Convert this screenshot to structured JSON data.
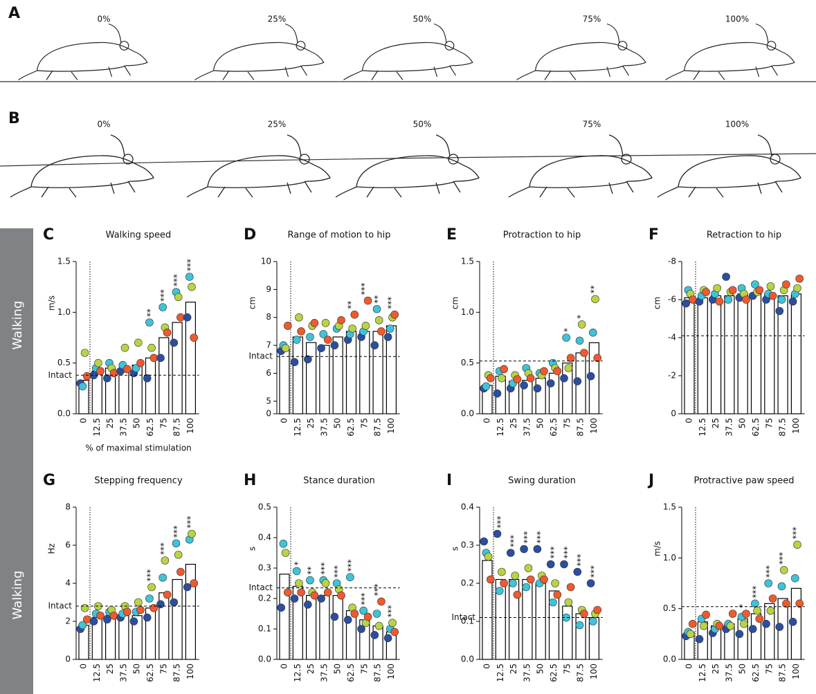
{
  "figure": {
    "rows": [
      {
        "label": "A",
        "stages": [
          "0%",
          "25%",
          "50%",
          "75%",
          "100%"
        ]
      },
      {
        "label": "B",
        "stages": [
          "0%",
          "25%",
          "50%",
          "75%",
          "100%"
        ]
      }
    ],
    "side_labels": [
      "Walking",
      "Walking"
    ]
  },
  "chart_data": [
    {
      "type": "bar",
      "letter": "C",
      "title": "Walking speed",
      "ylabel": "m/s",
      "xlabel": "% of maximal stimulation",
      "categories": [
        "0",
        "12.5",
        "25",
        "37.5",
        "50",
        "62.5",
        "75",
        "87.5",
        "100"
      ],
      "values": [
        0.33,
        0.42,
        0.45,
        0.45,
        0.48,
        0.55,
        0.75,
        0.9,
        1.1
      ],
      "stars": [
        null,
        null,
        null,
        null,
        null,
        "**",
        "***",
        "***",
        "***"
      ],
      "points": [
        [
          0.3,
          0.27,
          0.6,
          0.37
        ],
        [
          0.38,
          0.45,
          0.5,
          0.42
        ],
        [
          0.35,
          0.5,
          0.45,
          0.4
        ],
        [
          0.42,
          0.48,
          0.65,
          0.44
        ],
        [
          0.4,
          0.45,
          0.7,
          0.5
        ],
        [
          0.35,
          0.9,
          0.65,
          0.55
        ],
        [
          0.55,
          1.05,
          0.85,
          0.8
        ],
        [
          0.7,
          1.2,
          1.15,
          0.95
        ],
        [
          0.95,
          1.35,
          1.25,
          0.75
        ]
      ],
      "point_colors": [
        "#2b4ea0",
        "#3ec3da",
        "#b8d444",
        "#ef5a2e"
      ],
      "ref_line": 0.38,
      "ref_label": "Intact",
      "ylim": [
        0,
        1.5
      ],
      "yticks": [
        {
          "value": 0,
          "label": "0.0"
        },
        0.5,
        {
          "value": 1,
          "label": "1.0"
        },
        1.5
      ]
    },
    {
      "type": "bar",
      "letter": "D",
      "title": "Range of motion to hip",
      "ylabel": "cm",
      "categories": [
        "0",
        "12.5",
        "25",
        "37.5",
        "50",
        "62.5",
        "75",
        "87.5",
        "100"
      ],
      "values": [
        6.9,
        7.3,
        7.1,
        7.0,
        7.3,
        7.5,
        7.5,
        7.5,
        7.7
      ],
      "stars": [
        null,
        null,
        null,
        null,
        null,
        "**",
        "***",
        "**",
        "***"
      ],
      "points": [
        [
          6.8,
          7.0,
          6.9,
          7.7
        ],
        [
          6.4,
          7.2,
          8.0,
          7.5
        ],
        [
          6.5,
          7.3,
          7.7,
          7.8
        ],
        [
          6.9,
          7.4,
          7.8,
          7.2
        ],
        [
          7.0,
          7.6,
          7.7,
          7.9
        ],
        [
          7.2,
          7.4,
          7.6,
          8.1
        ],
        [
          7.3,
          7.5,
          7.7,
          8.6
        ],
        [
          7.0,
          8.3,
          7.9,
          7.5
        ],
        [
          7.3,
          7.6,
          8.0,
          8.1
        ]
      ],
      "point_colors": [
        "#2b4ea0",
        "#3ec3da",
        "#b8d444",
        "#ef5a2e"
      ],
      "ref_line": 6.6,
      "ref_label": "Intact",
      "ylim": [
        4.55,
        10
      ],
      "yticks": [
        5,
        6,
        7,
        8,
        9,
        10
      ],
      "ybottom_tick": 0
    },
    {
      "type": "bar",
      "letter": "E",
      "title": "Protraction to hip",
      "ylabel": "cm",
      "categories": [
        "0",
        "12.5",
        "25",
        "37.5",
        "50",
        "62.5",
        "75",
        "87.5",
        "100"
      ],
      "values": [
        0.28,
        0.37,
        0.32,
        0.33,
        0.35,
        0.4,
        0.5,
        0.6,
        0.7
      ],
      "stars": [
        null,
        null,
        null,
        null,
        null,
        null,
        "*",
        "*",
        "**"
      ],
      "points": [
        [
          0.25,
          0.27,
          0.38,
          0.35
        ],
        [
          0.2,
          0.42,
          0.35,
          0.44
        ],
        [
          0.25,
          0.3,
          0.38,
          0.34
        ],
        [
          0.28,
          0.45,
          0.4,
          0.35
        ],
        [
          0.25,
          0.4,
          0.38,
          0.42
        ],
        [
          0.3,
          0.5,
          0.45,
          0.42
        ],
        [
          0.35,
          0.75,
          0.45,
          0.55
        ],
        [
          0.32,
          0.72,
          0.88,
          0.6
        ],
        [
          0.37,
          0.8,
          1.13,
          0.55
        ]
      ],
      "point_colors": [
        "#2b4ea0",
        "#3ec3da",
        "#b8d444",
        "#ef5a2e"
      ],
      "ref_line": 0.52,
      "ylim": [
        0,
        1.5
      ],
      "yticks": [
        {
          "value": 0,
          "label": "0.0"
        },
        0.5,
        {
          "value": 1,
          "label": "1.0"
        },
        1.5
      ]
    },
    {
      "type": "bar",
      "letter": "F",
      "title": "Retraction to hip",
      "ylabel": "cm",
      "categories": [
        "0",
        "12.5",
        "25",
        "37.5",
        "50",
        "62.5",
        "75",
        "87.5",
        "100"
      ],
      "values": [
        -6.1,
        -6.1,
        -6.2,
        -6.2,
        -6.3,
        -6.3,
        -6.3,
        -6.2,
        -6.3
      ],
      "points": [
        [
          -5.8,
          -6.5,
          -6.3,
          -6.0
        ],
        [
          -5.9,
          -6.2,
          -6.5,
          -6.4
        ],
        [
          -6.0,
          -6.3,
          -6.6,
          -5.9
        ],
        [
          -7.2,
          -6.0,
          -6.4,
          -6.5
        ],
        [
          -6.1,
          -6.6,
          -6.3,
          -6.0
        ],
        [
          -6.2,
          -6.8,
          -6.4,
          -6.5
        ],
        [
          -6.0,
          -6.3,
          -6.7,
          -6.2
        ],
        [
          -5.4,
          -6.0,
          -6.5,
          -6.8
        ],
        [
          -5.9,
          -6.3,
          -6.6,
          -7.1
        ]
      ],
      "point_colors": [
        "#2b4ea0",
        "#3ec3da",
        "#b8d444",
        "#ef5a2e"
      ],
      "ref_line": -4.1,
      "ylim": [
        0,
        -8
      ],
      "yticks": [
        0,
        -2,
        -4,
        -6,
        -8
      ]
    },
    {
      "type": "bar",
      "letter": "G",
      "title": "Stepping frequency",
      "ylabel": "Hz",
      "categories": [
        "0",
        "12.5",
        "25",
        "37.5",
        "50",
        "62.5",
        "75",
        "87.5",
        "100"
      ],
      "values": [
        1.8,
        2.2,
        2.3,
        2.3,
        2.3,
        2.7,
        3.5,
        4.2,
        5.0
      ],
      "stars": [
        null,
        null,
        null,
        null,
        null,
        "***",
        "***",
        "***",
        "***"
      ],
      "points": [
        [
          1.6,
          1.8,
          2.7,
          2.1
        ],
        [
          2.0,
          2.4,
          2.8,
          2.3
        ],
        [
          2.1,
          2.5,
          2.6,
          2.3
        ],
        [
          2.2,
          2.4,
          2.8,
          2.5
        ],
        [
          2.0,
          2.5,
          3.0,
          2.6
        ],
        [
          2.2,
          3.2,
          3.8,
          2.7
        ],
        [
          2.9,
          4.3,
          5.2,
          3.4
        ],
        [
          3.0,
          6.1,
          5.5,
          4.6
        ],
        [
          3.8,
          6.3,
          6.6,
          4.0
        ]
      ],
      "point_colors": [
        "#2b4ea0",
        "#3ec3da",
        "#b8d444",
        "#ef5a2e"
      ],
      "ref_line": 2.8,
      "ref_label": "Intact",
      "ylim": [
        0,
        8
      ],
      "yticks": [
        0,
        2,
        4,
        6,
        8
      ]
    },
    {
      "type": "bar",
      "letter": "H",
      "title": "Stance duration",
      "ylabel": "s",
      "categories": [
        "0",
        "12.5",
        "25",
        "37.5",
        "50",
        "62.5",
        "75",
        "87.5",
        "100"
      ],
      "values": [
        0.28,
        0.24,
        0.21,
        0.21,
        0.21,
        0.16,
        0.13,
        0.11,
        0.09
      ],
      "stars": [
        null,
        "*",
        "**",
        "***",
        "***",
        "***",
        "***",
        "***",
        "***"
      ],
      "points": [
        [
          0.17,
          0.38,
          0.35,
          0.22
        ],
        [
          0.2,
          0.29,
          0.25,
          0.22
        ],
        [
          0.18,
          0.26,
          0.22,
          0.21
        ],
        [
          0.2,
          0.26,
          0.25,
          0.22
        ],
        [
          0.14,
          0.25,
          0.23,
          0.21
        ],
        [
          0.13,
          0.27,
          0.17,
          0.15
        ],
        [
          0.1,
          0.16,
          0.12,
          0.14
        ],
        [
          0.08,
          0.15,
          0.11,
          0.19
        ],
        [
          0.07,
          0.1,
          0.12,
          0.09
        ]
      ],
      "point_colors": [
        "#2b4ea0",
        "#3ec3da",
        "#b8d444",
        "#ef5a2e"
      ],
      "ref_line": 0.235,
      "ref_label": "Intact",
      "ylim": [
        0,
        0.5
      ],
      "yticks": [
        {
          "value": 0,
          "label": "0.0"
        },
        0.1,
        0.2,
        0.3,
        0.4,
        0.5
      ]
    },
    {
      "type": "bar",
      "letter": "I",
      "title": "Swing duration",
      "ylabel": "s",
      "categories": [
        "0",
        "12.5",
        "25",
        "37.5",
        "50",
        "62.5",
        "75",
        "87.5",
        "100"
      ],
      "values": [
        0.26,
        0.21,
        0.21,
        0.21,
        0.2,
        0.18,
        0.14,
        0.12,
        0.11
      ],
      "stars": [
        null,
        "***",
        "***",
        "***",
        "***",
        "***",
        "***",
        "***",
        "***"
      ],
      "points": [
        [
          0.31,
          0.28,
          0.27,
          0.21
        ],
        [
          0.33,
          0.18,
          0.23,
          0.2
        ],
        [
          0.28,
          0.2,
          0.22,
          0.17
        ],
        [
          0.29,
          0.19,
          0.24,
          0.21
        ],
        [
          0.29,
          0.2,
          0.22,
          0.21
        ],
        [
          0.25,
          0.15,
          0.2,
          0.17
        ],
        [
          0.25,
          0.11,
          0.15,
          0.19
        ],
        [
          0.23,
          0.09,
          0.13,
          0.12
        ],
        [
          0.2,
          0.1,
          0.12,
          0.13
        ]
      ],
      "point_colors": [
        "#2b4ea0",
        "#3ec3da",
        "#b8d444",
        "#ef5a2e"
      ],
      "ref_line": 0.11,
      "ref_label": "Intact",
      "ylim": [
        0,
        0.4
      ],
      "yticks": [
        {
          "value": 0,
          "label": "0.0"
        },
        0.1,
        0.2,
        0.3,
        0.4
      ]
    },
    {
      "type": "bar",
      "letter": "J",
      "title": "Protractive paw speed",
      "ylabel": "m/s",
      "categories": [
        "0",
        "12.5",
        "25",
        "37.5",
        "50",
        "62.5",
        "75",
        "87.5",
        "100"
      ],
      "values": [
        0.27,
        0.37,
        0.33,
        0.35,
        0.4,
        0.45,
        0.55,
        0.6,
        0.7
      ],
      "stars": [
        null,
        null,
        null,
        null,
        "*",
        "***",
        "***",
        "***",
        "***"
      ],
      "points": [
        [
          0.23,
          0.27,
          0.25,
          0.35
        ],
        [
          0.2,
          0.4,
          0.33,
          0.44
        ],
        [
          0.26,
          0.3,
          0.35,
          0.33
        ],
        [
          0.3,
          0.35,
          0.33,
          0.45
        ],
        [
          0.25,
          0.42,
          0.35,
          0.45
        ],
        [
          0.3,
          0.55,
          0.48,
          0.4
        ],
        [
          0.35,
          0.75,
          0.48,
          0.6
        ],
        [
          0.32,
          0.72,
          0.88,
          0.55
        ],
        [
          0.37,
          0.8,
          1.13,
          0.55
        ]
      ],
      "point_colors": [
        "#2b4ea0",
        "#3ec3da",
        "#b8d444",
        "#ef5a2e"
      ],
      "ref_line": 0.52,
      "ylim": [
        0,
        1.5
      ],
      "yticks": [
        {
          "value": 0,
          "label": "0.0"
        },
        0.5,
        {
          "value": 1,
          "label": "1.0"
        },
        1.5
      ]
    }
  ]
}
